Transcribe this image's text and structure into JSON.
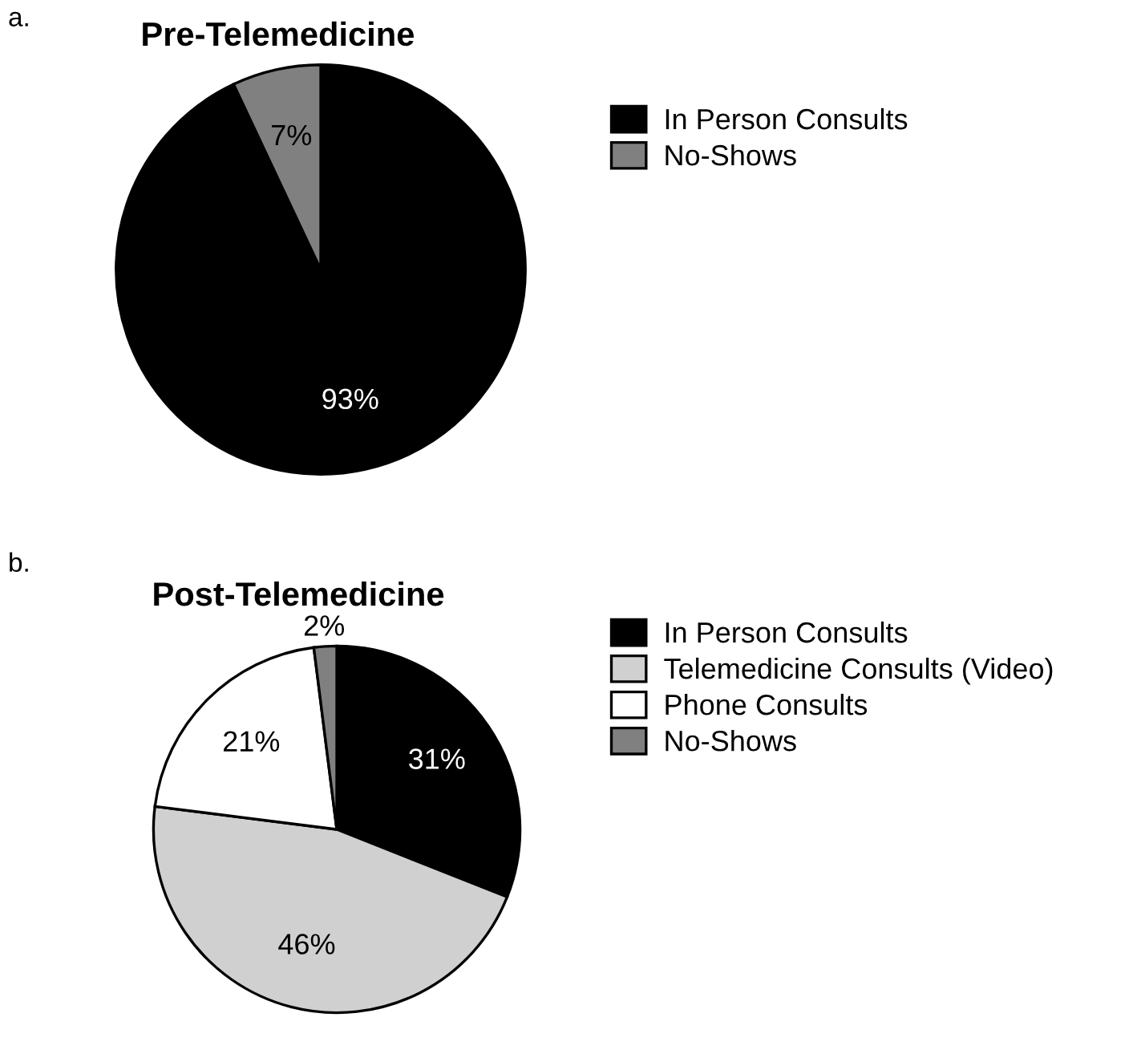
{
  "chart_data": [
    {
      "type": "pie",
      "title": "Pre-Telemedicine",
      "categories": [
        "In Person Consults",
        "No-Shows"
      ],
      "values": [
        93,
        7
      ],
      "colors": [
        "#000000",
        "#808080"
      ],
      "value_labels": [
        "93%",
        "7%"
      ],
      "legend": "right",
      "annotations": [
        "a."
      ]
    },
    {
      "type": "pie",
      "title": "Post-Telemedicine",
      "categories": [
        "In Person Consults",
        "Telemedicine Consults (Video)",
        "Phone Consults",
        "No-Shows"
      ],
      "values": [
        31,
        46,
        21,
        2
      ],
      "colors": [
        "#000000",
        "#d0d0d0",
        "#ffffff",
        "#808080"
      ],
      "value_labels": [
        "31%",
        "46%",
        "21%",
        "2%"
      ],
      "legend": "right",
      "annotations": [
        "b."
      ]
    }
  ]
}
